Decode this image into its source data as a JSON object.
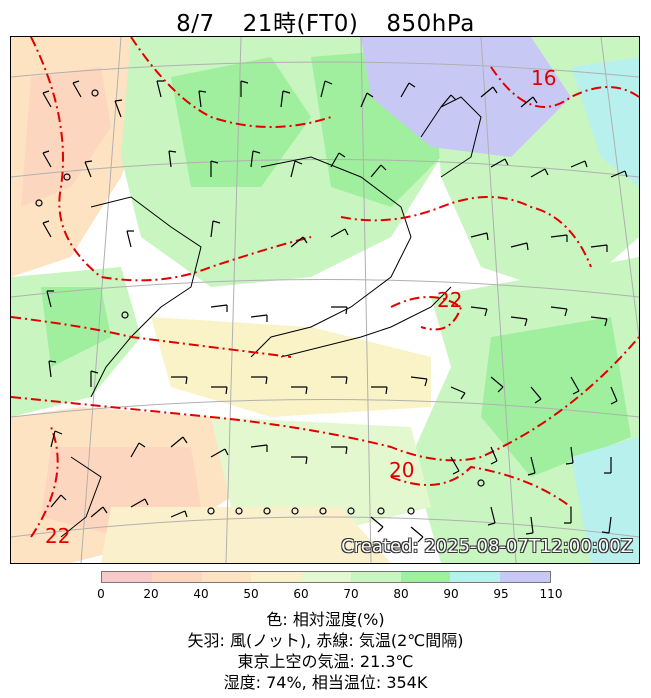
{
  "header": {
    "date": "8/7",
    "time": "21時(FT0)",
    "level": "850hPa"
  },
  "map": {
    "created": "Created: 2025-08-07T12:00:00Z",
    "contour_labels": [
      "16",
      "22",
      "20",
      "22"
    ],
    "colors": {
      "rh_lt20": "#fbd3d3",
      "rh_40_50": "#fde3c2",
      "rh_60_70": "#fbf3c8",
      "rh_70_80": "#c8f5c0",
      "rh_80_90": "#9fef9f",
      "rh_90_95": "#b8f0ee",
      "rh_95_110": "#c8c8f5",
      "temperature_line": "#e00000"
    }
  },
  "colorbar": {
    "ticks": [
      "0",
      "20",
      "40",
      "50",
      "60",
      "70",
      "80",
      "90",
      "95",
      "110"
    ],
    "colors": [
      "#f8c9c9",
      "#fdd6c0",
      "#fde3c2",
      "#fbf0cc",
      "#e4f8d0",
      "#c8f5c0",
      "#9fef9f",
      "#b8f0ee",
      "#c8c8f5"
    ]
  },
  "legend": {
    "line1": "色: 相対湿度(%)",
    "line2": "矢羽: 風(ノット),  赤線: 気温(2℃間隔)",
    "line3": "東京上空の気温: 21.3℃",
    "line4": "湿度: 74%, 相当温位: 354K"
  }
}
